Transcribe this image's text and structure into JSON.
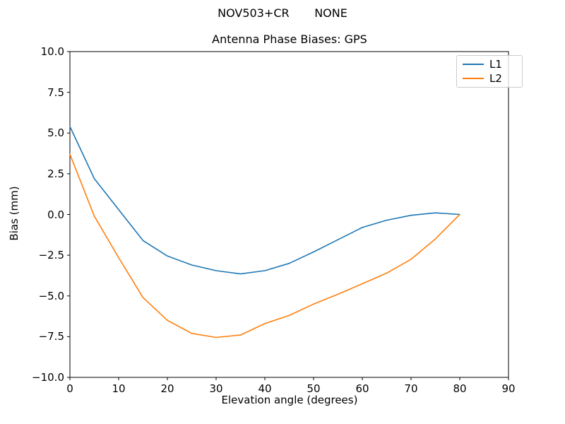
{
  "figure": {
    "suptitle": "NOV503+CR       NONE",
    "background_color": "#ffffff",
    "spine_color": "#000000"
  },
  "chart_data": {
    "type": "line",
    "title": "Antenna Phase Biases: GPS",
    "xlabel": "Elevation angle (degrees)",
    "ylabel": "Bias (mm)",
    "xlim": [
      0,
      90
    ],
    "ylim": [
      -10,
      10
    ],
    "grid": false,
    "xticks": {
      "values": [
        0,
        10,
        20,
        30,
        40,
        50,
        60,
        70,
        80,
        90
      ],
      "labels": [
        "0",
        "10",
        "20",
        "30",
        "40",
        "50",
        "60",
        "70",
        "80",
        "90"
      ]
    },
    "yticks": {
      "values": [
        10,
        7.5,
        5,
        2.5,
        0,
        -2.5,
        -5,
        -7.5,
        -10
      ],
      "labels": [
        "10.0",
        "7.5",
        "5.0",
        "2.5",
        "0.0",
        "−2.5",
        "−5.0",
        "−7.5",
        "−10.0"
      ]
    },
    "x": [
      0,
      5,
      10,
      15,
      20,
      25,
      30,
      35,
      40,
      45,
      50,
      55,
      60,
      65,
      70,
      75,
      80
    ],
    "series": [
      {
        "name": "L1",
        "color": "#1f77b4",
        "values": [
          5.4,
          2.2,
          0.3,
          -1.6,
          -2.55,
          -3.1,
          -3.45,
          -3.65,
          -3.45,
          -3.0,
          -2.3,
          -1.55,
          -0.8,
          -0.35,
          -0.05,
          0.1,
          0.0
        ]
      },
      {
        "name": "L2",
        "color": "#ff7f0e",
        "values": [
          3.7,
          -0.1,
          -2.65,
          -5.1,
          -6.5,
          -7.3,
          -7.55,
          -7.4,
          -6.7,
          -6.2,
          -5.5,
          -4.9,
          -4.25,
          -3.6,
          -2.75,
          -1.5,
          0.0
        ]
      }
    ],
    "legend": {
      "position": "upper right",
      "entries": [
        "L1",
        "L2"
      ]
    }
  }
}
